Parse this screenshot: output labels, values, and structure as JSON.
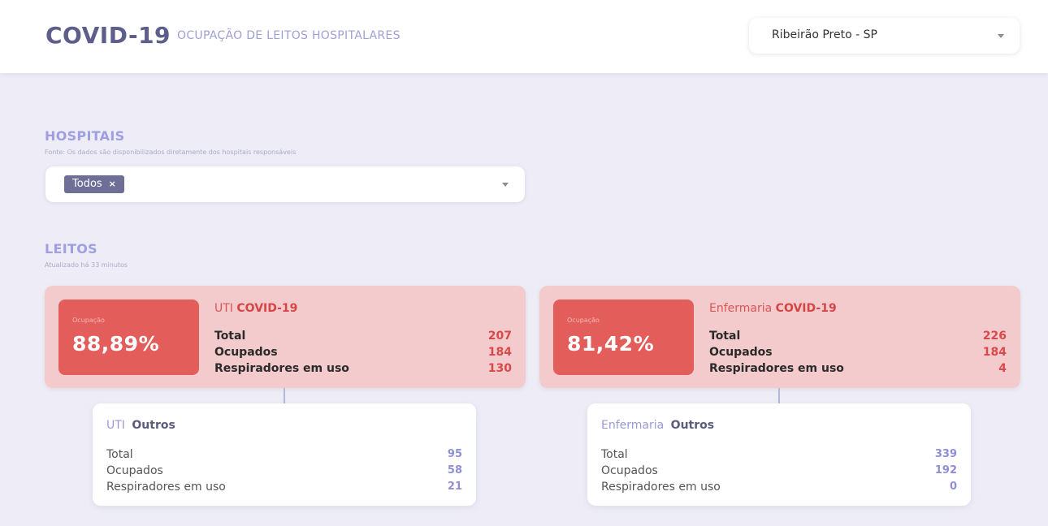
{
  "header": {
    "title": "COVID-19",
    "subtitle": "OCUPAÇÃO DE LEITOS HOSPITALARES",
    "city_select": {
      "value": "Ribeirão Preto - SP",
      "icon": "chevron-down-icon"
    }
  },
  "hospitais": {
    "title": "HOSPITAIS",
    "source_note": "Fonte: Os dados são disponibilizados diretamente dos hospitais responsáveis",
    "select": {
      "tag": "Todos",
      "tag_remove": "×",
      "icon": "chevron-down-icon"
    }
  },
  "leitos": {
    "title": "LEITOS",
    "updated_note": "Atualizado há 33 minutos",
    "covid_cards": [
      {
        "occupancy_label": "Ocupação",
        "occupancy_value": "88,89%",
        "title_prefix": "UTI",
        "title_strong": "COVID-19",
        "stats": [
          {
            "label": "Total",
            "value": "207"
          },
          {
            "label": "Ocupados",
            "value": "184"
          },
          {
            "label": "Respiradores em uso",
            "value": "130"
          }
        ]
      },
      {
        "occupancy_label": "Ocupação",
        "occupancy_value": "81,42%",
        "title_prefix": "Enfermaria",
        "title_strong": "COVID-19",
        "stats": [
          {
            "label": "Total",
            "value": "226"
          },
          {
            "label": "Ocupados",
            "value": "184"
          },
          {
            "label": "Respiradores em uso",
            "value": "4"
          }
        ]
      }
    ],
    "other_cards": [
      {
        "title_prefix": "UTI",
        "title_strong": "Outros",
        "stats": [
          {
            "label": "Total",
            "value": "95"
          },
          {
            "label": "Ocupados",
            "value": "58"
          },
          {
            "label": "Respiradores em uso",
            "value": "21"
          }
        ]
      },
      {
        "title_prefix": "Enfermaria",
        "title_strong": "Outros",
        "stats": [
          {
            "label": "Total",
            "value": "339"
          },
          {
            "label": "Ocupados",
            "value": "192"
          },
          {
            "label": "Respiradores em uso",
            "value": "0"
          }
        ]
      }
    ]
  },
  "colors": {
    "page_bg": "#eeedf7",
    "accent_purple": "#9f9ee0",
    "covid_card_bg": "#f3cbcc",
    "occupancy_box": "#e35d5b",
    "covid_number": "#d9484a",
    "other_number": "#8f8ed6"
  }
}
